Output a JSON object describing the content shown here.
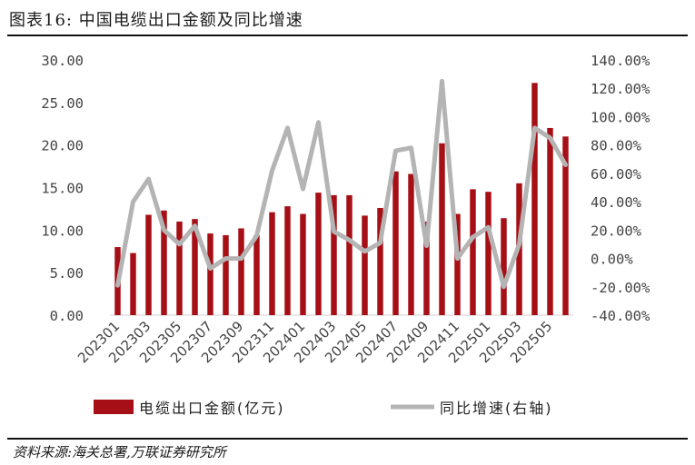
{
  "header": {
    "title": "图表16:  中国电缆出口金额及同比增速"
  },
  "footer": {
    "source": "资料来源:海关总署,万联证券研究所"
  },
  "colors": {
    "bar": "#a50f15",
    "line": "#b4b4b4"
  },
  "chart_data": {
    "type": "bar",
    "title": "中国电缆出口金额及同比增速",
    "categories": [
      "202301",
      "202302",
      "202303",
      "202304",
      "202305",
      "202306",
      "202307",
      "202308",
      "202309",
      "202310",
      "202311",
      "202312",
      "202401",
      "202402",
      "202403",
      "202404",
      "202405",
      "202406",
      "202407",
      "202408",
      "202409",
      "202410",
      "202411",
      "202412",
      "202501",
      "202502",
      "202503",
      "202504",
      "202505",
      "202506"
    ],
    "x_tick_labels": [
      "202301",
      "202303",
      "202305",
      "202307",
      "202309",
      "202311",
      "202401",
      "202403",
      "202405",
      "202407",
      "202409",
      "202411",
      "202501",
      "202503",
      "202505"
    ],
    "y_tick_labels": [
      "30.00",
      "25.00",
      "20.00",
      "15.00",
      "10.00",
      "5.00",
      "0.00"
    ],
    "y2_tick_labels": [
      "140.00%",
      "120.00%",
      "100.00%",
      "80.00%",
      "60.00%",
      "40.00%",
      "20.00%",
      "0.00%",
      "-20.00%",
      "-40.00%"
    ],
    "ylim": [
      0,
      30
    ],
    "y2lim": [
      -40,
      140
    ],
    "legend_position": "bottom",
    "series": [
      {
        "name": "电缆出口金额(亿元)",
        "type": "bar",
        "axis": "left",
        "values": [
          8.0,
          7.3,
          11.8,
          12.3,
          11.0,
          11.3,
          9.6,
          9.4,
          10.2,
          9.4,
          12.1,
          12.8,
          11.9,
          14.4,
          14.1,
          14.1,
          11.7,
          12.6,
          16.9,
          16.6,
          11.0,
          20.2,
          11.9,
          14.8,
          14.5,
          11.4,
          15.5,
          27.3,
          22.0,
          21.0
        ]
      },
      {
        "name": "同比增速(右轴)",
        "type": "line",
        "axis": "right",
        "values": [
          -19,
          40,
          56,
          20,
          10,
          23,
          -7,
          0,
          0,
          16,
          62,
          92,
          49,
          96,
          19,
          13,
          5,
          11,
          76,
          78,
          9,
          125,
          0,
          15,
          22,
          -20,
          10,
          92,
          85,
          66
        ]
      }
    ]
  }
}
